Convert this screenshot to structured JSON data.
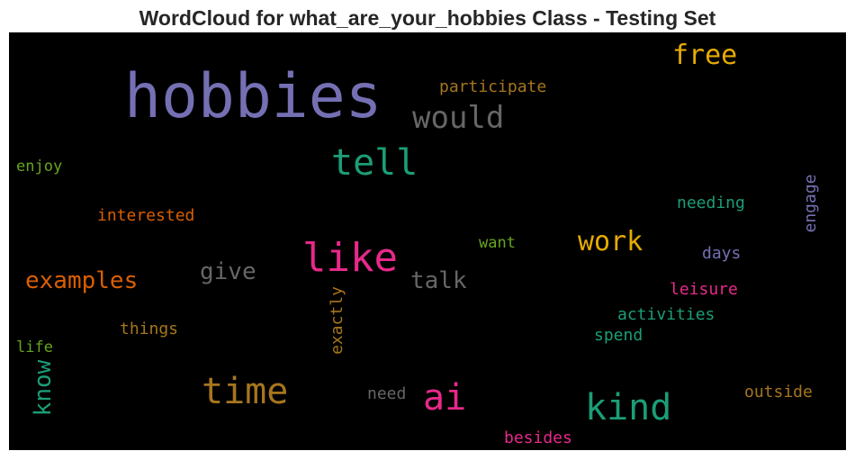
{
  "chart_data": {
    "type": "wordcloud",
    "title": "WordCloud for what_are_your_hobbies Class - Testing Set",
    "background": "#000000",
    "words": [
      {
        "text": "hobbies",
        "weight": 1.0,
        "color": "#7570b3",
        "orientation": "horizontal"
      },
      {
        "text": "like",
        "weight": 0.72,
        "color": "#e7298a",
        "orientation": "horizontal"
      },
      {
        "text": "time",
        "weight": 0.62,
        "color": "#a6761d",
        "orientation": "horizontal"
      },
      {
        "text": "kind",
        "weight": 0.6,
        "color": "#1b9e77",
        "orientation": "horizontal"
      },
      {
        "text": "tell",
        "weight": 0.6,
        "color": "#1b9e77",
        "orientation": "horizontal"
      },
      {
        "text": "ai",
        "weight": 0.58,
        "color": "#e7298a",
        "orientation": "horizontal"
      },
      {
        "text": "would",
        "weight": 0.5,
        "color": "#666666",
        "orientation": "horizontal"
      },
      {
        "text": "work",
        "weight": 0.46,
        "color": "#e6ab02",
        "orientation": "horizontal"
      },
      {
        "text": "free",
        "weight": 0.46,
        "color": "#e6ab02",
        "orientation": "horizontal"
      },
      {
        "text": "know",
        "weight": 0.42,
        "color": "#1b9e77",
        "orientation": "vertical"
      },
      {
        "text": "examples",
        "weight": 0.4,
        "color": "#d95f02",
        "orientation": "horizontal"
      },
      {
        "text": "give",
        "weight": 0.4,
        "color": "#666666",
        "orientation": "horizontal"
      },
      {
        "text": "talk",
        "weight": 0.4,
        "color": "#666666",
        "orientation": "horizontal"
      },
      {
        "text": "participate",
        "weight": 0.28,
        "color": "#a6761d",
        "orientation": "horizontal"
      },
      {
        "text": "interested",
        "weight": 0.28,
        "color": "#d95f02",
        "orientation": "horizontal"
      },
      {
        "text": "enjoy",
        "weight": 0.27,
        "color": "#66a61e",
        "orientation": "horizontal"
      },
      {
        "text": "engage",
        "weight": 0.27,
        "color": "#7570b3",
        "orientation": "vertical"
      },
      {
        "text": "needing",
        "weight": 0.27,
        "color": "#1b9e77",
        "orientation": "horizontal"
      },
      {
        "text": "want",
        "weight": 0.25,
        "color": "#66a61e",
        "orientation": "horizontal"
      },
      {
        "text": "days",
        "weight": 0.27,
        "color": "#7570b3",
        "orientation": "horizontal"
      },
      {
        "text": "leisure",
        "weight": 0.27,
        "color": "#e7298a",
        "orientation": "horizontal"
      },
      {
        "text": "exactly",
        "weight": 0.27,
        "color": "#a6761d",
        "orientation": "vertical"
      },
      {
        "text": "activities",
        "weight": 0.27,
        "color": "#1b9e77",
        "orientation": "horizontal"
      },
      {
        "text": "things",
        "weight": 0.27,
        "color": "#a6761d",
        "orientation": "horizontal"
      },
      {
        "text": "spend",
        "weight": 0.27,
        "color": "#1b9e77",
        "orientation": "horizontal"
      },
      {
        "text": "life",
        "weight": 0.25,
        "color": "#66a61e",
        "orientation": "horizontal"
      },
      {
        "text": "need",
        "weight": 0.27,
        "color": "#666666",
        "orientation": "horizontal"
      },
      {
        "text": "outside",
        "weight": 0.27,
        "color": "#a6761d",
        "orientation": "horizontal"
      },
      {
        "text": "besides",
        "weight": 0.27,
        "color": "#e7298a",
        "orientation": "horizontal"
      }
    ]
  }
}
